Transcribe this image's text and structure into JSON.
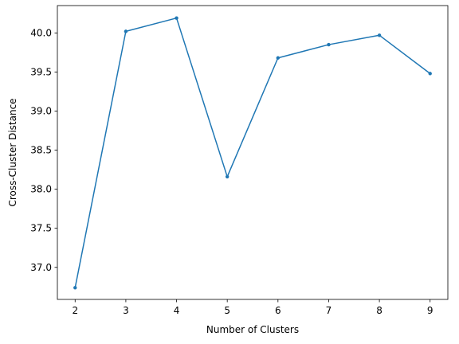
{
  "chart_data": {
    "type": "line",
    "title": "",
    "xlabel": "Number of Clusters",
    "ylabel": "Cross-Cluster Distance",
    "x": [
      2,
      3,
      4,
      5,
      6,
      7,
      8,
      9
    ],
    "series": [
      {
        "values": [
          36.74,
          40.02,
          40.19,
          38.16,
          39.68,
          39.85,
          39.97,
          39.48
        ],
        "color": "#1f77b4",
        "marker": "point"
      }
    ],
    "xlim": [
      1.65,
      9.35
    ],
    "ylim": [
      36.59,
      40.35
    ],
    "xticks": [
      2,
      3,
      4,
      5,
      6,
      7,
      8,
      9
    ],
    "xtick_labels": [
      "2",
      "3",
      "4",
      "5",
      "6",
      "7",
      "8",
      "9"
    ],
    "yticks": [
      37.0,
      37.5,
      38.0,
      38.5,
      39.0,
      39.5,
      40.0
    ],
    "ytick_labels": [
      "37.0",
      "37.5",
      "38.0",
      "38.5",
      "39.0",
      "39.5",
      "40.0"
    ],
    "grid": false,
    "legend": "none"
  }
}
